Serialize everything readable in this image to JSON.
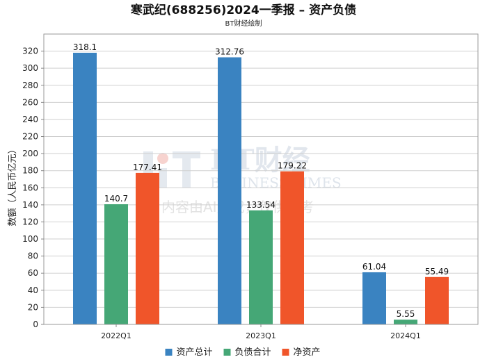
{
  "title": "寒武纪(688256)2024一季报 – 资产负债",
  "subtitle": "BT财经绘制",
  "watermark": {
    "brand": "BT财经",
    "brand_en": "BUSINESS TIMES",
    "notice": "内容由AI生成，仅供参考"
  },
  "colors": {
    "资产总计": "#3a83c1",
    "负债合计": "#45a776",
    "净资产": "#f0552a"
  },
  "chart_data": {
    "type": "bar",
    "title": "寒武纪(688256)2024一季报 – 资产负债",
    "subtitle": "BT财经绘制",
    "categories": [
      "2022Q1",
      "2023Q1",
      "2024Q1"
    ],
    "series": [
      {
        "name": "资产总计",
        "values": [
          318.1,
          312.76,
          61.04
        ]
      },
      {
        "name": "负债合计",
        "values": [
          140.7,
          133.54,
          5.55
        ]
      },
      {
        "name": "净资产",
        "values": [
          177.41,
          179.22,
          55.49
        ]
      }
    ],
    "ylabel": "数额（人民币亿元）",
    "xlabel": "",
    "ylim": [
      0,
      340
    ],
    "yticks": [
      0,
      20,
      40,
      60,
      80,
      100,
      120,
      140,
      160,
      180,
      200,
      220,
      240,
      260,
      280,
      300,
      320
    ],
    "grid": true,
    "legend_position": "bottom"
  }
}
